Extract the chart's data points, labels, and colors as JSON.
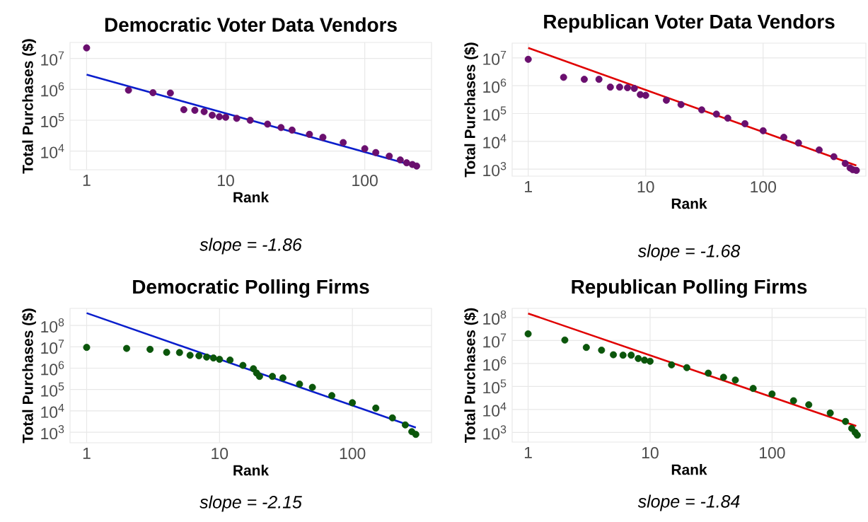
{
  "chart_data": [
    {
      "type": "scatter",
      "title": "Democratic Voter Data Vendors",
      "xlabel": "Rank",
      "ylabel": "Total Purchases ($)",
      "annotations": [
        "slope = -1.86"
      ],
      "log": "xy",
      "grid": true,
      "xlim": [
        0.76,
        302
      ],
      "ylim": [
        2500,
        33000000
      ],
      "xticks": [
        1,
        10,
        100
      ],
      "yticks": [
        {
          "value": 10000,
          "label": "10$^{4}$"
        },
        {
          "value": 100000,
          "label": "10$^{5}$"
        },
        {
          "value": 1000000,
          "label": "10$^{6}$"
        },
        {
          "value": 10000000,
          "label": "10$^{7}$"
        }
      ],
      "series": [
        {
          "color": "#6a0f6e",
          "marker": "circle",
          "x": [
            1,
            2,
            3,
            4,
            5,
            6,
            7,
            8,
            9,
            10,
            12,
            15,
            20,
            25,
            30,
            40,
            50,
            70,
            100,
            120,
            150,
            180,
            200,
            220,
            236
          ],
          "values": [
            22000000,
            940000,
            780000,
            760000,
            220000,
            210000,
            190000,
            146000,
            130000,
            125000,
            115000,
            100000,
            75000,
            58000,
            48000,
            35000,
            28000,
            19000,
            12000,
            9000,
            6900,
            5200,
            4200,
            3700,
            3300
          ]
        },
        {
          "type": "line",
          "color": "#0a1ecc",
          "x": [
            1,
            236
          ],
          "values": [
            3000000,
            3200
          ]
        }
      ]
    },
    {
      "type": "scatter",
      "title": "Republican Voter Data Vendors",
      "xlabel": "Rank",
      "ylabel": "Total Purchases ($)",
      "annotations": [
        "slope = -1.68"
      ],
      "log": "xy",
      "grid": true,
      "xlim": [
        0.73,
        750
      ],
      "ylim": [
        560,
        34000000
      ],
      "xticks": [
        1,
        10,
        100
      ],
      "yticks": [
        {
          "value": 1000,
          "label": "10$^{3}$"
        },
        {
          "value": 10000,
          "label": "10$^{4}$"
        },
        {
          "value": 100000,
          "label": "10$^{5}$"
        },
        {
          "value": 1000000,
          "label": "10$^{6}$"
        },
        {
          "value": 10000000,
          "label": "10$^{7}$"
        }
      ],
      "series": [
        {
          "color": "#6a0f6e",
          "marker": "circle",
          "x": [
            1,
            2,
            3,
            4,
            5,
            6,
            7,
            8,
            9,
            10,
            15,
            20,
            30,
            40,
            50,
            70,
            100,
            150,
            200,
            300,
            400,
            500,
            550,
            580,
            622
          ],
          "values": [
            8900000,
            2000000,
            1700000,
            1700000,
            890000,
            890000,
            850000,
            800000,
            480000,
            450000,
            300000,
            210000,
            135000,
            95000,
            68000,
            43000,
            24000,
            14000,
            8700,
            4900,
            2800,
            1600,
            1100,
            950,
            900
          ]
        },
        {
          "type": "line",
          "color": "#e00000",
          "x": [
            1,
            622
          ],
          "values": [
            23000000,
            1350
          ]
        }
      ]
    },
    {
      "type": "scatter",
      "title": "Democratic Polling Firms",
      "xlabel": "Rank",
      "ylabel": "Total Purchases ($)",
      "annotations": [
        "slope = -2.15"
      ],
      "log": "xy",
      "grid": true,
      "xlim": [
        0.75,
        394
      ],
      "ylim": [
        320,
        630000000
      ],
      "xticks": [
        1,
        10,
        100
      ],
      "yticks": [
        {
          "value": 1000,
          "label": "10$^{3}$"
        },
        {
          "value": 10000,
          "label": "10$^{4}$"
        },
        {
          "value": 100000,
          "label": "10$^{5}$"
        },
        {
          "value": 1000000,
          "label": "10$^{6}$"
        },
        {
          "value": 10000000,
          "label": "10$^{7}$"
        },
        {
          "value": 100000000,
          "label": "10$^{8}$"
        }
      ],
      "series": [
        {
          "color": "#0b560b",
          "marker": "circle",
          "x": [
            1,
            2,
            3,
            4,
            5,
            6,
            7,
            8,
            9,
            10,
            12,
            15,
            18,
            19,
            20,
            25,
            30,
            40,
            50,
            70,
            100,
            150,
            200,
            250,
            280,
            300
          ],
          "values": [
            9400000,
            8400000,
            7600000,
            5500000,
            5400000,
            4000000,
            3800000,
            3300000,
            3000000,
            2600000,
            2400000,
            1350000,
            940000,
            590000,
            410000,
            410000,
            350000,
            180000,
            127000,
            52000,
            24000,
            13500,
            4700,
            2200,
            1060,
            790
          ]
        },
        {
          "type": "line",
          "color": "#0a1ecc",
          "x": [
            1,
            300
          ],
          "values": [
            380000000,
            1650
          ]
        }
      ]
    },
    {
      "type": "scatter",
      "title": "Republican Polling Firms",
      "xlabel": "Rank",
      "ylabel": "Total Purchases ($)",
      "annotations": [
        "slope = -1.84"
      ],
      "log": "xy",
      "grid": true,
      "xlim": [
        0.74,
        588
      ],
      "ylim": [
        380,
        250000000
      ],
      "xticks": [
        1,
        10,
        100
      ],
      "yticks": [
        {
          "value": 1000,
          "label": "10$^{3}$"
        },
        {
          "value": 10000,
          "label": "10$^{4}$"
        },
        {
          "value": 100000,
          "label": "10$^{5}$"
        },
        {
          "value": 1000000,
          "label": "10$^{6}$"
        },
        {
          "value": 10000000,
          "label": "10$^{7}$"
        },
        {
          "value": 100000000,
          "label": "10$^{8}$"
        }
      ],
      "series": [
        {
          "color": "#0b560b",
          "marker": "circle",
          "x": [
            1,
            2,
            3,
            4,
            5,
            6,
            7,
            8,
            9,
            10,
            15,
            20,
            30,
            40,
            50,
            70,
            100,
            150,
            200,
            300,
            400,
            450,
            480,
            500
          ],
          "values": [
            19500000,
            10500000,
            5000000,
            3800000,
            2400000,
            2300000,
            2300000,
            1650000,
            1400000,
            1250000,
            870000,
            660000,
            380000,
            250000,
            190000,
            82000,
            47000,
            24000,
            16000,
            7000,
            3000,
            1500,
            1000,
            760
          ]
        },
        {
          "type": "line",
          "color": "#e00000",
          "x": [
            1,
            490
          ],
          "values": [
            150000000,
            1900
          ]
        }
      ]
    }
  ]
}
